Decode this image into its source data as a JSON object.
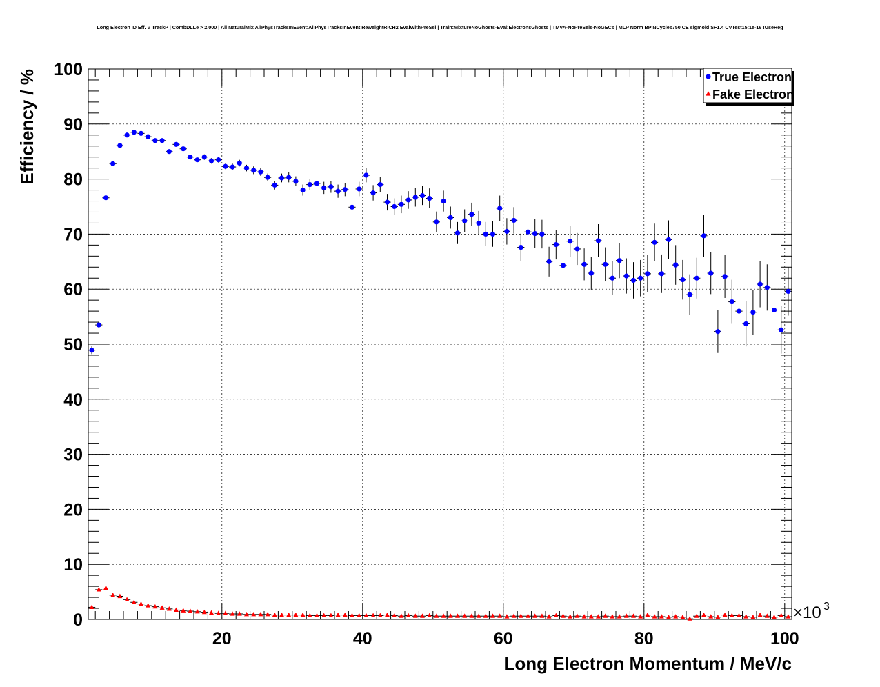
{
  "chart_data": {
    "type": "scatter",
    "title": "Long Electron ID Eff. V TrackP | CombDLLe > 2.000 | All NaturalMix AllPhysTracksInEvent:AllPhysTracksInEvent ReweightRICH2 EvalWithPreSel | Train:MixtureNoGhosts-Eval:ElectronsGhosts | TMVA-NoPreSels-NoGECs | MLP Norm BP NCycles750 CE sigmoid SF1.4 CVTest15:1e-16 !UseReg",
    "xlabel": "Long Electron Momentum / MeV/c",
    "ylabel": "Efficiency / %",
    "x_multiplier": "×10",
    "x_multiplier_exponent": "3",
    "xlim": [
      1,
      101
    ],
    "ylim": [
      0,
      100
    ],
    "x_ticks": [
      "20",
      "40",
      "60",
      "80",
      "100"
    ],
    "y_ticks": [
      "0",
      "10",
      "20",
      "30",
      "40",
      "50",
      "60",
      "70",
      "80",
      "90",
      "100"
    ],
    "grid": true,
    "legend_position": "top-right",
    "x": [
      1.5,
      2.5,
      3.5,
      4.5,
      5.5,
      6.5,
      7.5,
      8.5,
      9.5,
      10.5,
      11.5,
      12.5,
      13.5,
      14.5,
      15.5,
      16.5,
      17.5,
      18.5,
      19.5,
      20.5,
      21.5,
      22.5,
      23.5,
      24.5,
      25.5,
      26.5,
      27.5,
      28.5,
      29.5,
      30.5,
      31.5,
      32.5,
      33.5,
      34.5,
      35.5,
      36.5,
      37.5,
      38.5,
      39.5,
      40.5,
      41.5,
      42.5,
      43.5,
      44.5,
      45.5,
      46.5,
      47.5,
      48.5,
      49.5,
      50.5,
      51.5,
      52.5,
      53.5,
      54.5,
      55.5,
      56.5,
      57.5,
      58.5,
      59.5,
      60.5,
      61.5,
      62.5,
      63.5,
      64.5,
      65.5,
      66.5,
      67.5,
      68.5,
      69.5,
      70.5,
      71.5,
      72.5,
      73.5,
      74.5,
      75.5,
      76.5,
      77.5,
      78.5,
      79.5,
      80.5,
      81.5,
      82.5,
      83.5,
      84.5,
      85.5,
      86.5,
      87.5,
      88.5,
      89.5,
      90.5,
      91.5,
      92.5,
      93.5,
      94.5,
      95.5,
      96.5,
      97.5,
      98.5,
      99.5,
      100.5
    ],
    "series": [
      {
        "name": "True Electron",
        "marker": "circle",
        "color": "#0000ff",
        "values": [
          48.9,
          53.5,
          76.6,
          82.8,
          86.1,
          88.0,
          88.5,
          88.3,
          87.7,
          87.0,
          87.0,
          85.0,
          86.3,
          85.5,
          84.0,
          83.5,
          84.0,
          83.3,
          83.5,
          82.3,
          82.2,
          82.9,
          82.0,
          81.6,
          81.3,
          80.3,
          78.9,
          80.2,
          80.3,
          79.6,
          78.0,
          79.0,
          79.2,
          78.4,
          78.6,
          77.8,
          78.1,
          74.9,
          78.2,
          80.7,
          77.5,
          79.0,
          75.8,
          75.0,
          75.4,
          76.2,
          76.7,
          77.0,
          76.5,
          72.2,
          76.0,
          73.0,
          70.2,
          72.4,
          73.6,
          72.0,
          70.0,
          70.0,
          74.7,
          70.5,
          72.5,
          67.6,
          70.4,
          70.1,
          70.0,
          65.0,
          68.1,
          64.3,
          68.7,
          67.3,
          64.5,
          62.9,
          68.8,
          64.5,
          62.0,
          65.2,
          62.4,
          61.6,
          62.0,
          62.8,
          68.5,
          62.8,
          69.0,
          64.4,
          61.7,
          59.0,
          62.0,
          69.7,
          62.9,
          52.3,
          62.3,
          57.7,
          56.0,
          53.7,
          55.8,
          60.9,
          60.3,
          56.2,
          52.6,
          59.6
        ],
        "errors": [
          0.7,
          0.6,
          0.4,
          0.4,
          0.3,
          0.3,
          0.3,
          0.3,
          0.3,
          0.3,
          0.3,
          0.4,
          0.4,
          0.4,
          0.4,
          0.4,
          0.5,
          0.5,
          0.5,
          0.5,
          0.6,
          0.6,
          0.6,
          0.7,
          0.7,
          0.7,
          0.8,
          0.8,
          0.9,
          0.9,
          1.0,
          1.0,
          1.0,
          1.1,
          1.1,
          1.2,
          1.2,
          1.3,
          1.3,
          1.3,
          1.4,
          1.4,
          1.5,
          1.5,
          1.6,
          1.6,
          1.7,
          1.7,
          1.8,
          1.9,
          1.9,
          2.0,
          2.0,
          2.1,
          2.1,
          2.2,
          2.2,
          2.3,
          2.3,
          2.4,
          2.4,
          2.5,
          2.5,
          2.6,
          2.6,
          2.7,
          2.7,
          2.8,
          2.8,
          2.9,
          2.9,
          3.0,
          3.0,
          3.1,
          3.1,
          3.2,
          3.2,
          3.3,
          3.3,
          3.4,
          3.4,
          3.5,
          3.5,
          3.6,
          3.6,
          3.7,
          3.7,
          3.8,
          3.8,
          3.9,
          3.9,
          4.0,
          4.0,
          4.1,
          4.1,
          4.2,
          4.2,
          4.3,
          4.3,
          4.4
        ]
      },
      {
        "name": "Fake Electron",
        "marker": "triangle",
        "color": "#ff0000",
        "values": [
          2.2,
          5.4,
          5.7,
          4.4,
          4.2,
          3.6,
          3.1,
          2.8,
          2.5,
          2.3,
          2.1,
          1.9,
          1.7,
          1.6,
          1.5,
          1.4,
          1.3,
          1.2,
          1.1,
          1.1,
          1.0,
          1.0,
          0.9,
          0.9,
          0.9,
          0.9,
          0.8,
          0.8,
          0.8,
          0.8,
          0.8,
          0.7,
          0.7,
          0.7,
          0.7,
          0.8,
          0.8,
          0.7,
          0.7,
          0.7,
          0.7,
          0.7,
          0.8,
          0.7,
          0.6,
          0.7,
          0.6,
          0.6,
          0.7,
          0.6,
          0.6,
          0.6,
          0.6,
          0.6,
          0.6,
          0.6,
          0.6,
          0.6,
          0.6,
          0.5,
          0.6,
          0.6,
          0.6,
          0.6,
          0.6,
          0.5,
          0.7,
          0.6,
          0.5,
          0.6,
          0.5,
          0.5,
          0.5,
          0.6,
          0.5,
          0.5,
          0.6,
          0.6,
          0.5,
          0.8,
          0.5,
          0.5,
          0.4,
          0.5,
          0.4,
          0.1,
          0.6,
          0.8,
          0.5,
          0.4,
          0.8,
          0.7,
          0.7,
          0.5,
          0.4,
          0.8,
          0.6,
          0.4,
          0.7,
          0.5
        ]
      }
    ]
  }
}
